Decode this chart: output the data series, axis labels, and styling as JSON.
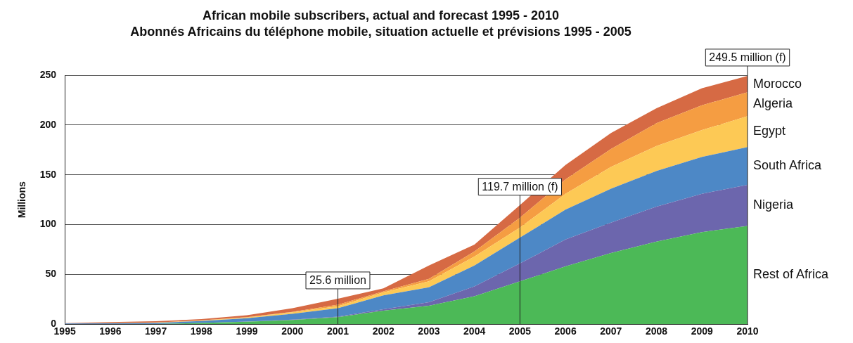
{
  "chart_data": {
    "type": "area",
    "stacked": true,
    "title": "African mobile subscribers, actual and forecast 1995 - 2010",
    "subtitle": "Abonnés Africains du téléphone mobile, situation actuelle et prévisions 1995 - 2005",
    "ylabel": "Millions",
    "x": [
      1995,
      1996,
      1997,
      1998,
      1999,
      2000,
      2001,
      2002,
      2003,
      2004,
      2005,
      2006,
      2007,
      2008,
      2009,
      2010
    ],
    "xlim": [
      1995,
      2010
    ],
    "xticks": [
      1995,
      1996,
      1997,
      1998,
      1999,
      2000,
      2001,
      2002,
      2003,
      2004,
      2005,
      2006,
      2007,
      2008,
      2009,
      2010
    ],
    "ylim": [
      0,
      250
    ],
    "yticks": [
      0,
      50,
      100,
      150,
      200,
      250
    ],
    "grid": "y",
    "legend": false,
    "series": [
      {
        "name": "Rest of Africa",
        "color": "#4cb957",
        "values": [
          0,
          0,
          0.2,
          1.2,
          2.5,
          4.2,
          7,
          13.6,
          18.5,
          28,
          43,
          58,
          71.5,
          83,
          92.5,
          98.7
        ]
      },
      {
        "name": "Nigeria",
        "color": "#6c66ad",
        "values": [
          0,
          0,
          0,
          0,
          0.1,
          0.3,
          0.5,
          1.4,
          3.5,
          10,
          18,
          27,
          30.5,
          35,
          38.5,
          41.3
        ]
      },
      {
        "name": "South Africa",
        "color": "#4d88c6",
        "values": [
          0.6,
          0.8,
          1,
          2,
          3.4,
          5.9,
          8.5,
          14,
          15,
          21,
          26,
          30,
          34,
          36,
          37,
          38
        ]
      },
      {
        "name": "Egypt",
        "color": "#fdc955",
        "values": [
          0,
          0.2,
          0.3,
          0.3,
          0.6,
          1.6,
          2,
          3,
          6,
          9,
          10,
          16,
          22,
          25,
          27,
          31
        ]
      },
      {
        "name": "Algeria",
        "color": "#f59d42",
        "values": [
          0,
          0,
          0.2,
          0.3,
          0.4,
          0.4,
          1.5,
          1,
          2.6,
          5,
          10,
          14.5,
          18,
          23,
          25,
          24
        ]
      },
      {
        "name": "Morocco",
        "color": "#d66a44",
        "values": [
          0.4,
          1,
          1.3,
          1.2,
          2,
          3.6,
          6.1,
          3,
          13.4,
          7,
          12.7,
          14.5,
          16,
          15,
          17,
          16.5
        ]
      }
    ],
    "annotations": [
      {
        "text": "25.6 million",
        "x": 2001,
        "y": 25.6
      },
      {
        "text": "119.7 million (f)",
        "x": 2005,
        "y": 119.7
      },
      {
        "text": "249.5 million (f)",
        "x": 2010,
        "y": 249.5
      }
    ]
  }
}
